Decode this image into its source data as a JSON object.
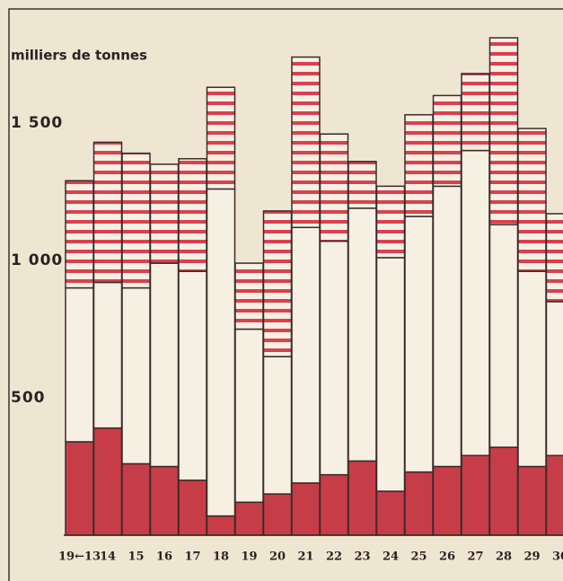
{
  "chart_data": {
    "type": "stacked-bar",
    "y_label": "milliers de tonnes",
    "categories": [
      "19←13",
      "14",
      "15",
      "16",
      "17",
      "18",
      "19",
      "20",
      "21",
      "22",
      "23",
      "24",
      "25",
      "26",
      "27",
      "28",
      "29",
      "30"
    ],
    "series": [
      {
        "color": "#c63d47",
        "hatch": false,
        "values": [
          340,
          390,
          260,
          250,
          200,
          70,
          120,
          150,
          190,
          220,
          270,
          160,
          230,
          250,
          290,
          320,
          250,
          290
        ]
      },
      {
        "color": "#f6f0e3",
        "hatch": false,
        "values": [
          560,
          530,
          640,
          740,
          760,
          1190,
          630,
          500,
          930,
          850,
          920,
          850,
          930,
          1020,
          1110,
          810,
          710,
          560
        ]
      },
      {
        "color": "#d9414f",
        "hatch": true,
        "values": [
          390,
          510,
          490,
          360,
          410,
          370,
          240,
          530,
          620,
          390,
          170,
          260,
          370,
          330,
          280,
          680,
          520,
          320
        ]
      }
    ],
    "ylim": [
      0,
      1915
    ],
    "yticks": [
      500,
      {
        "value": 1000,
        "label": "1 000"
      },
      {
        "value": 1500,
        "label": "1 500"
      }
    ],
    "grid": false
  }
}
